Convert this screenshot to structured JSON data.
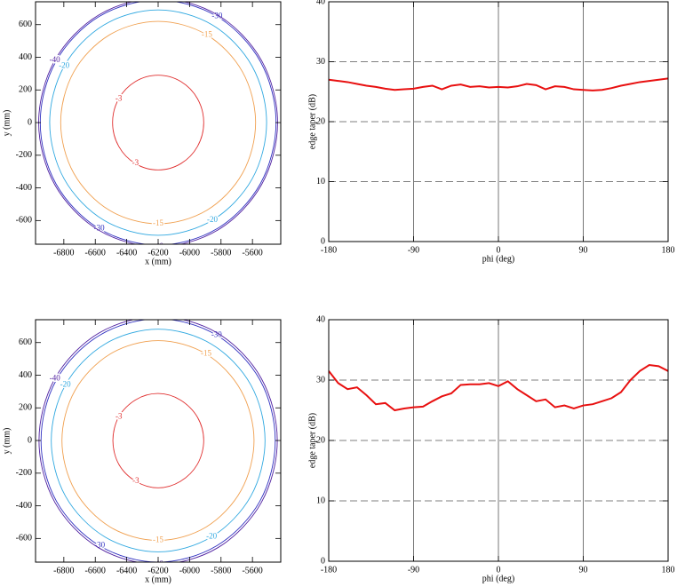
{
  "chart_data": [
    {
      "type": "contour",
      "xlabel": "x (mm)",
      "ylabel": "y (mm)",
      "xlim": [
        -6980,
        -5420
      ],
      "ylim": [
        -745,
        740
      ],
      "xticks": [
        -6800,
        -6600,
        -6400,
        -6200,
        -6000,
        -5800,
        -5600
      ],
      "yticks": [
        -600,
        -400,
        -200,
        0,
        200,
        400,
        600
      ],
      "contours": [
        {
          "level": -3,
          "color": "#e03030",
          "x": [
            -5910,
            -5949,
            -6055,
            -6200,
            -6345,
            -6451,
            -6490,
            -6451,
            -6345,
            -6200,
            -6055,
            -5949
          ],
          "y": [
            0,
            145,
            251,
            290,
            251,
            145,
            0,
            -145,
            -251,
            -290,
            -251,
            -145
          ]
        },
        {
          "level": -15,
          "color": "#f0a050",
          "x": [
            -5580,
            -5663,
            -5890,
            -6200,
            -6510,
            -6737,
            -6820,
            -6737,
            -6510,
            -6200,
            -5890,
            -5663
          ],
          "y": [
            0,
            310,
            537,
            620,
            537,
            310,
            0,
            -310,
            -537,
            -620,
            -537,
            -310
          ]
        },
        {
          "level": -20,
          "color": "#30a8e0",
          "x": [
            -5510,
            -5602,
            -5855,
            -6200,
            -6545,
            -6798,
            -6890,
            -6798,
            -6545,
            -6200,
            -5855,
            -5602
          ],
          "y": [
            0,
            345,
            598,
            690,
            598,
            345,
            0,
            -345,
            -598,
            -690,
            -598,
            -345
          ]
        },
        {
          "level": -30,
          "color": "#3030c0",
          "x": [
            -5450,
            -5550,
            -5825,
            -6200,
            -6575,
            -6850,
            -6950,
            -6850,
            -6575,
            -6200,
            -5825,
            -5550
          ],
          "y": [
            0,
            375,
            650,
            750,
            650,
            375,
            0,
            -375,
            -650,
            -750,
            -650,
            -375
          ]
        },
        {
          "level": -40,
          "color": "#5020a0",
          "x": [
            -5440,
            -5542,
            -5820,
            -6200,
            -6580,
            -6858,
            -6960,
            -6858,
            -6580,
            -6200,
            -5820,
            -5542
          ],
          "y": [
            0,
            380,
            658,
            760,
            658,
            380,
            0,
            -380,
            -658,
            -760,
            -658,
            -380
          ]
        }
      ]
    },
    {
      "type": "line",
      "xlabel": "phi (deg)",
      "ylabel": "edge taper (dB)",
      "xlim": [
        -180,
        180
      ],
      "ylim": [
        0,
        40
      ],
      "xticks": [
        -180,
        -90,
        0,
        90,
        180
      ],
      "yticks": [
        0,
        10,
        20,
        30,
        40
      ],
      "grid": true,
      "color": "#e81010",
      "x": [
        -180,
        -170,
        -160,
        -150,
        -140,
        -130,
        -120,
        -110,
        -100,
        -90,
        -80,
        -70,
        -60,
        -50,
        -40,
        -30,
        -20,
        -10,
        0,
        10,
        20,
        30,
        40,
        50,
        60,
        70,
        80,
        90,
        100,
        110,
        120,
        130,
        140,
        150,
        160,
        170,
        180
      ],
      "values": [
        27.0,
        26.8,
        26.6,
        26.3,
        26.0,
        25.8,
        25.5,
        25.3,
        25.4,
        25.5,
        25.8,
        26.0,
        25.4,
        26.0,
        26.2,
        25.8,
        25.9,
        25.7,
        25.8,
        25.7,
        25.9,
        26.3,
        26.1,
        25.4,
        25.9,
        25.8,
        25.4,
        25.3,
        25.2,
        25.3,
        25.6,
        26.0,
        26.3,
        26.6,
        26.8,
        27.0,
        27.2
      ]
    },
    {
      "type": "contour",
      "xlabel": "x (mm)",
      "ylabel": "y (mm)",
      "xlim": [
        -6980,
        -5420
      ],
      "ylim": [
        -745,
        740
      ],
      "xticks": [
        -6800,
        -6600,
        -6400,
        -6200,
        -6000,
        -5800,
        -5600
      ],
      "yticks": [
        -600,
        -400,
        -200,
        0,
        200,
        400,
        600
      ],
      "contours": [
        {
          "level": -3,
          "color": "#e03030",
          "x": [
            -5910,
            -5950,
            -6058,
            -6200,
            -6342,
            -6450,
            -6488,
            -6450,
            -6342,
            -6200,
            -6058,
            -5950
          ],
          "y": [
            0,
            143,
            248,
            288,
            250,
            146,
            0,
            -146,
            -250,
            -290,
            -250,
            -145
          ]
        },
        {
          "level": -15,
          "color": "#f0a050",
          "x": [
            -5590,
            -5672,
            -5895,
            -6200,
            -6505,
            -6730,
            -6812,
            -6730,
            -6505,
            -6200,
            -5895,
            -5672
          ],
          "y": [
            0,
            305,
            530,
            612,
            530,
            305,
            0,
            -305,
            -530,
            -612,
            -530,
            -305
          ]
        },
        {
          "level": -20,
          "color": "#30a8e0",
          "x": [
            -5520,
            -5610,
            -5860,
            -6200,
            -6540,
            -6790,
            -6880,
            -6790,
            -6540,
            -6200,
            -5860,
            -5610
          ],
          "y": [
            0,
            340,
            590,
            682,
            590,
            340,
            0,
            -340,
            -590,
            -682,
            -590,
            -340
          ]
        },
        {
          "level": -30,
          "color": "#3030c0",
          "x": [
            -5455,
            -5553,
            -5828,
            -6200,
            -6572,
            -6847,
            -6945,
            -6847,
            -6572,
            -6200,
            -5828,
            -5553
          ],
          "y": [
            0,
            372,
            645,
            745,
            645,
            372,
            0,
            -372,
            -645,
            -745,
            -645,
            -372
          ]
        },
        {
          "level": -40,
          "color": "#5020a0",
          "x": [
            -5442,
            -5543,
            -5821,
            -6200,
            -6579,
            -6857,
            -6958,
            -6857,
            -6579,
            -6200,
            -5821,
            -5543
          ],
          "y": [
            0,
            379,
            657,
            758,
            657,
            379,
            0,
            -379,
            -657,
            -758,
            -657,
            -379
          ]
        }
      ]
    },
    {
      "type": "line",
      "xlabel": "phi (deg)",
      "ylabel": "edge taper (dB)",
      "xlim": [
        -180,
        180
      ],
      "ylim": [
        0,
        40
      ],
      "xticks": [
        -180,
        -90,
        0,
        90,
        180
      ],
      "yticks": [
        0,
        10,
        20,
        30,
        40
      ],
      "grid": true,
      "color": "#e81010",
      "x": [
        -180,
        -170,
        -160,
        -150,
        -140,
        -130,
        -120,
        -110,
        -100,
        -90,
        -80,
        -70,
        -60,
        -50,
        -40,
        -30,
        -20,
        -10,
        0,
        10,
        20,
        30,
        40,
        50,
        60,
        70,
        80,
        90,
        100,
        110,
        120,
        130,
        140,
        150,
        160,
        170,
        180
      ],
      "values": [
        31.5,
        29.5,
        28.5,
        28.8,
        27.5,
        26.0,
        26.2,
        25.0,
        25.3,
        25.5,
        25.6,
        26.5,
        27.3,
        27.8,
        29.2,
        29.3,
        29.3,
        29.5,
        29.0,
        29.8,
        28.5,
        27.5,
        26.5,
        26.8,
        25.5,
        25.8,
        25.3,
        25.8,
        26.0,
        26.5,
        27.0,
        28.0,
        30.0,
        31.5,
        32.5,
        32.3,
        31.5
      ]
    }
  ]
}
